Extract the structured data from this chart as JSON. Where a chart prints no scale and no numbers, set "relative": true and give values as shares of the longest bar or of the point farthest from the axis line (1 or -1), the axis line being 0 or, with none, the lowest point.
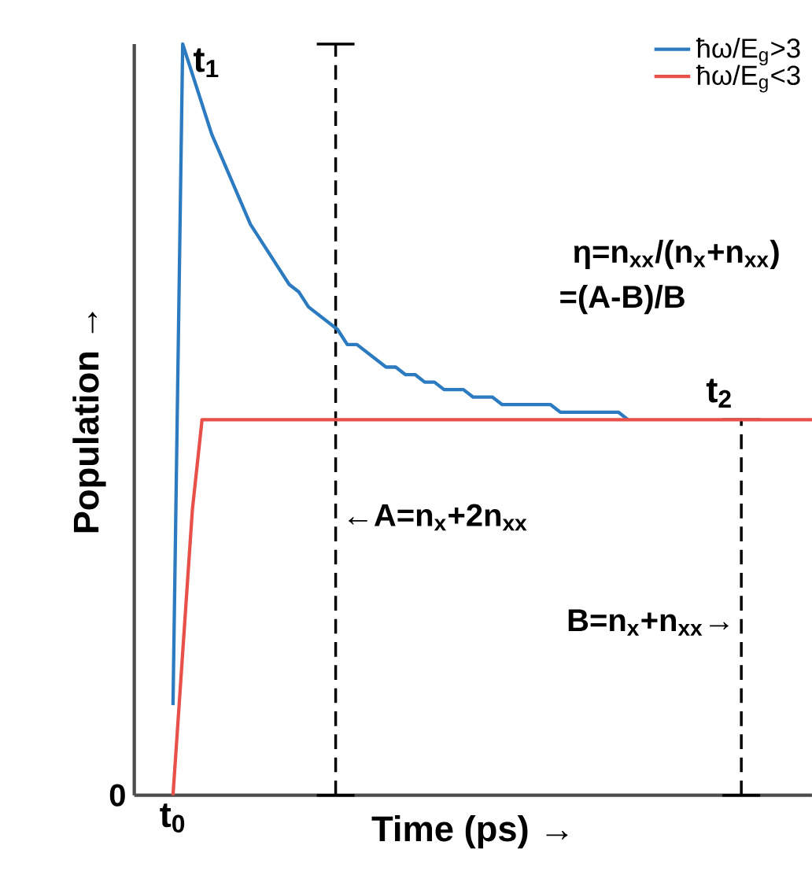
{
  "chart_data": {
    "type": "line",
    "relative": true,
    "xlabel": "Time (ps) →",
    "ylabel": "Population →",
    "categories": [
      null,
      null,
      null,
      null,
      null,
      null,
      null,
      null,
      null,
      null,
      null,
      null,
      null,
      null,
      null,
      null,
      null,
      null,
      null,
      null,
      null,
      null,
      null,
      null,
      null,
      null,
      null,
      null,
      null,
      null,
      null,
      null,
      null,
      null,
      null,
      null,
      null,
      null,
      null,
      null,
      null,
      null,
      null,
      null,
      null,
      null,
      null,
      null,
      null,
      null,
      null,
      null,
      null,
      null,
      null,
      null,
      null,
      null,
      null,
      null,
      null,
      null,
      null,
      null,
      null,
      null,
      null,
      null,
      null,
      null,
      null
    ],
    "series": [
      {
        "name": "ħω/E$_{g}$>3",
        "color": "#2c7bc0",
        "values": [
          null,
          null,
          null,
          null,
          0.12,
          1.0,
          0.96,
          0.92,
          0.88,
          0.85,
          0.82,
          0.79,
          0.76,
          0.74,
          0.72,
          0.7,
          0.68,
          0.67,
          0.65,
          0.64,
          0.63,
          0.62,
          0.6,
          0.6,
          0.59,
          0.58,
          0.57,
          0.57,
          0.56,
          0.56,
          0.55,
          0.55,
          0.54,
          0.54,
          0.54,
          0.53,
          0.53,
          0.53,
          0.52,
          0.52,
          0.52,
          0.52,
          0.52,
          0.52,
          0.51,
          0.51,
          0.51,
          0.51,
          0.51,
          0.51,
          0.51,
          0.5,
          null,
          null,
          null,
          null,
          null,
          null,
          null,
          null,
          null,
          null,
          null,
          null,
          null,
          null,
          null,
          null,
          null,
          null,
          null
        ]
      },
      {
        "name": "ħω/E$_{g}$<3",
        "color": "#e8514a",
        "values": [
          null,
          null,
          null,
          null,
          0,
          0.19,
          0.38,
          0.5,
          0.5,
          0.5,
          0.5,
          0.5,
          0.5,
          0.5,
          0.5,
          0.5,
          0.5,
          0.5,
          0.5,
          0.5,
          0.5,
          0.5,
          0.5,
          0.5,
          0.5,
          0.5,
          0.5,
          0.5,
          0.5,
          0.5,
          0.5,
          0.5,
          0.5,
          0.5,
          0.5,
          0.5,
          0.5,
          0.5,
          0.5,
          0.5,
          0.5,
          0.5,
          0.5,
          0.5,
          0.5,
          0.5,
          0.5,
          0.5,
          0.5,
          0.5,
          0.5,
          0.5,
          0.5,
          0.5,
          0.5,
          0.5,
          0.5,
          0.5,
          0.5,
          0.5,
          0.5,
          0.5,
          0.5,
          0.5,
          0.5,
          0.5,
          0.5,
          0.5,
          0.5,
          0.5,
          0.5
        ]
      }
    ],
    "legend": "top right",
    "annotations": [
      "0",
      "η=n$_{xx}$/(n$_{x}$+n$_{xx}$)",
      "=(A-B)/B",
      "t$_{0}$",
      "t$_{1}$",
      "t$_{2}$",
      "←A=n$_{x}$+2n$_{xx}$",
      "B=n$_{x}$+n$_{xx}$→"
    ]
  }
}
